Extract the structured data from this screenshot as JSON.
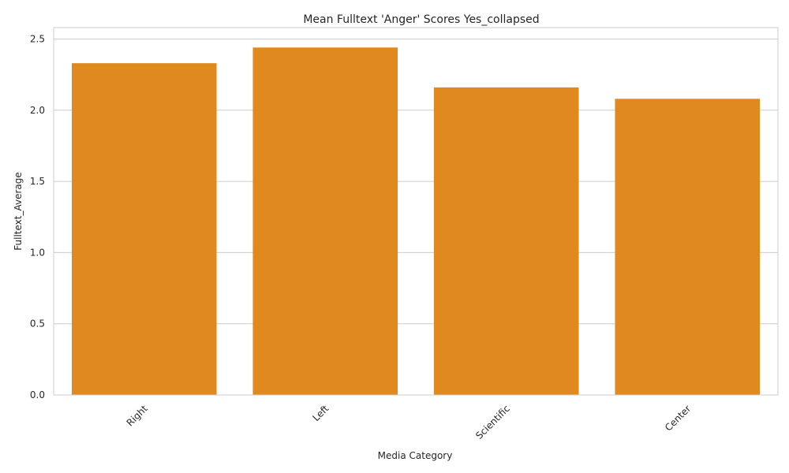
{
  "chart_data": {
    "type": "bar",
    "title": "Mean Fulltext 'Anger' Scores Yes_collapsed",
    "xlabel": "Media Category",
    "ylabel": "Fulltext_Average",
    "categories": [
      "Right",
      "Left",
      "Scientific",
      "Center"
    ],
    "values": [
      2.33,
      2.44,
      2.16,
      2.08
    ],
    "ylim": [
      0,
      2.58
    ],
    "yticks": [
      0.0,
      0.5,
      1.0,
      1.5,
      2.0,
      2.5
    ],
    "ytick_labels": [
      "0.0",
      "0.5",
      "1.0",
      "1.5",
      "2.0",
      "2.5"
    ],
    "bar_color": "#e0891f",
    "grid": "horizontal",
    "legend": "none"
  }
}
